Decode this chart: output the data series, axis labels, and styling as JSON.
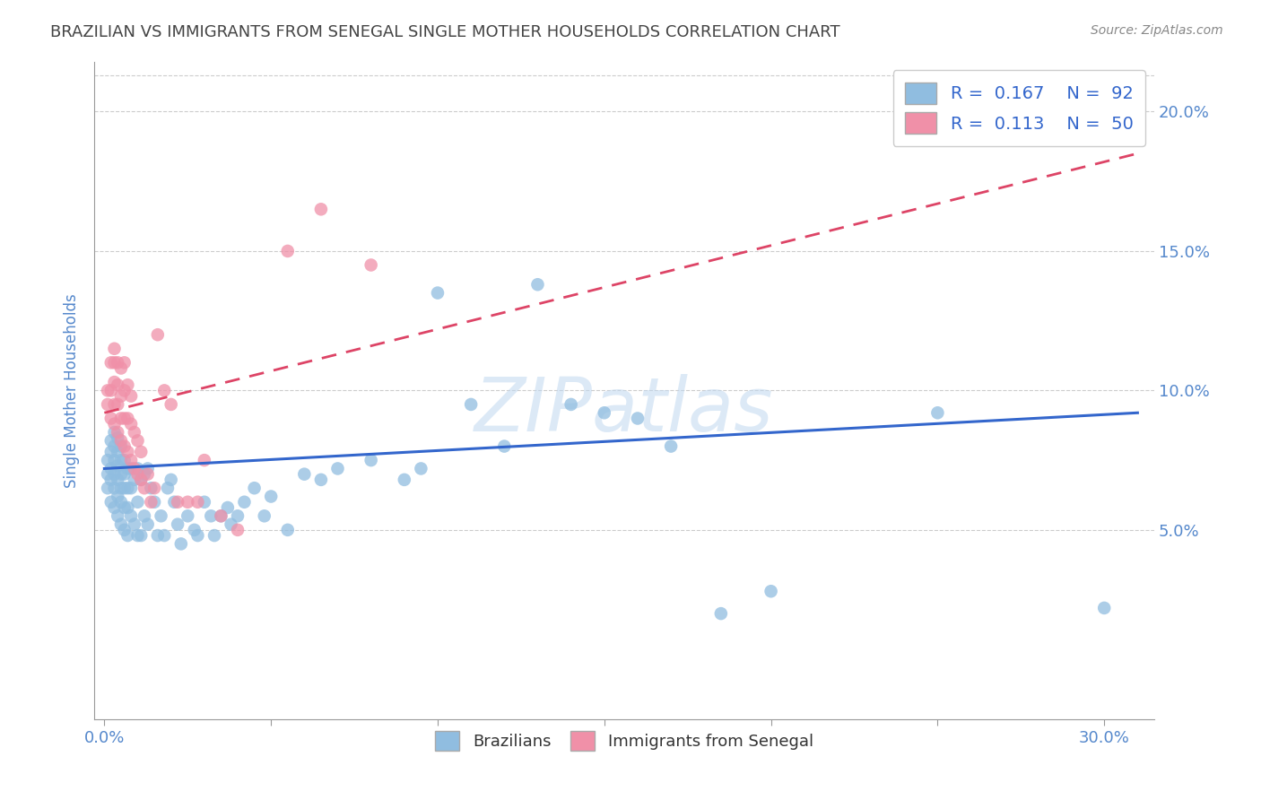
{
  "title": "BRAZILIAN VS IMMIGRANTS FROM SENEGAL SINGLE MOTHER HOUSEHOLDS CORRELATION CHART",
  "source": "Source: ZipAtlas.com",
  "ylabel": "Single Mother Households",
  "xlim": [
    -0.003,
    0.315
  ],
  "ylim": [
    -0.018,
    0.218
  ],
  "yticks": [
    0.05,
    0.1,
    0.15,
    0.2
  ],
  "xtick_labels_show": [
    0.0,
    0.3
  ],
  "legend_labels_bottom": [
    "Brazilians",
    "Immigrants from Senegal"
  ],
  "watermark_text": "ZIPatlas",
  "blue_scatter_color": "#90bde0",
  "pink_scatter_color": "#f090a8",
  "blue_line_color": "#3366cc",
  "pink_line_color": "#dd4466",
  "grid_color": "#cccccc",
  "background_color": "#ffffff",
  "title_color": "#444444",
  "axis_label_color": "#5588cc",
  "tick_label_color": "#5588cc",
  "blue_line_x0": 0.0,
  "blue_line_y0": 0.072,
  "blue_line_x1": 0.31,
  "blue_line_y1": 0.092,
  "pink_line_x0": 0.0,
  "pink_line_y0": 0.092,
  "pink_line_x1": 0.31,
  "pink_line_y1": 0.185,
  "blue_scatter_x": [
    0.001,
    0.001,
    0.001,
    0.002,
    0.002,
    0.002,
    0.002,
    0.002,
    0.003,
    0.003,
    0.003,
    0.003,
    0.003,
    0.003,
    0.004,
    0.004,
    0.004,
    0.004,
    0.004,
    0.004,
    0.005,
    0.005,
    0.005,
    0.005,
    0.005,
    0.005,
    0.006,
    0.006,
    0.006,
    0.006,
    0.006,
    0.007,
    0.007,
    0.007,
    0.007,
    0.008,
    0.008,
    0.008,
    0.009,
    0.009,
    0.01,
    0.01,
    0.01,
    0.011,
    0.011,
    0.012,
    0.012,
    0.013,
    0.013,
    0.014,
    0.015,
    0.016,
    0.017,
    0.018,
    0.019,
    0.02,
    0.021,
    0.022,
    0.023,
    0.025,
    0.027,
    0.028,
    0.03,
    0.032,
    0.033,
    0.035,
    0.037,
    0.038,
    0.04,
    0.042,
    0.045,
    0.048,
    0.05,
    0.055,
    0.06,
    0.065,
    0.07,
    0.08,
    0.09,
    0.095,
    0.1,
    0.11,
    0.12,
    0.13,
    0.14,
    0.15,
    0.16,
    0.17,
    0.185,
    0.2,
    0.25,
    0.3
  ],
  "blue_scatter_y": [
    0.065,
    0.07,
    0.075,
    0.06,
    0.068,
    0.072,
    0.078,
    0.082,
    0.058,
    0.065,
    0.07,
    0.075,
    0.08,
    0.085,
    0.055,
    0.062,
    0.068,
    0.073,
    0.078,
    0.083,
    0.052,
    0.06,
    0.065,
    0.07,
    0.075,
    0.08,
    0.05,
    0.058,
    0.065,
    0.07,
    0.075,
    0.048,
    0.058,
    0.065,
    0.072,
    0.055,
    0.065,
    0.072,
    0.052,
    0.068,
    0.048,
    0.06,
    0.072,
    0.048,
    0.068,
    0.055,
    0.07,
    0.052,
    0.072,
    0.065,
    0.06,
    0.048,
    0.055,
    0.048,
    0.065,
    0.068,
    0.06,
    0.052,
    0.045,
    0.055,
    0.05,
    0.048,
    0.06,
    0.055,
    0.048,
    0.055,
    0.058,
    0.052,
    0.055,
    0.06,
    0.065,
    0.055,
    0.062,
    0.05,
    0.07,
    0.068,
    0.072,
    0.075,
    0.068,
    0.072,
    0.135,
    0.095,
    0.08,
    0.138,
    0.095,
    0.092,
    0.09,
    0.08,
    0.02,
    0.028,
    0.092,
    0.022
  ],
  "pink_scatter_x": [
    0.001,
    0.001,
    0.002,
    0.002,
    0.002,
    0.003,
    0.003,
    0.003,
    0.003,
    0.003,
    0.004,
    0.004,
    0.004,
    0.004,
    0.005,
    0.005,
    0.005,
    0.005,
    0.006,
    0.006,
    0.006,
    0.006,
    0.007,
    0.007,
    0.007,
    0.008,
    0.008,
    0.008,
    0.009,
    0.009,
    0.01,
    0.01,
    0.011,
    0.011,
    0.012,
    0.013,
    0.014,
    0.015,
    0.016,
    0.018,
    0.02,
    0.022,
    0.025,
    0.028,
    0.03,
    0.035,
    0.04,
    0.055,
    0.065,
    0.08
  ],
  "pink_scatter_y": [
    0.095,
    0.1,
    0.09,
    0.1,
    0.11,
    0.088,
    0.095,
    0.103,
    0.11,
    0.115,
    0.085,
    0.095,
    0.102,
    0.11,
    0.082,
    0.09,
    0.098,
    0.108,
    0.08,
    0.09,
    0.1,
    0.11,
    0.078,
    0.09,
    0.102,
    0.075,
    0.088,
    0.098,
    0.072,
    0.085,
    0.07,
    0.082,
    0.068,
    0.078,
    0.065,
    0.07,
    0.06,
    0.065,
    0.12,
    0.1,
    0.095,
    0.06,
    0.06,
    0.06,
    0.075,
    0.055,
    0.05,
    0.15,
    0.165,
    0.145
  ]
}
